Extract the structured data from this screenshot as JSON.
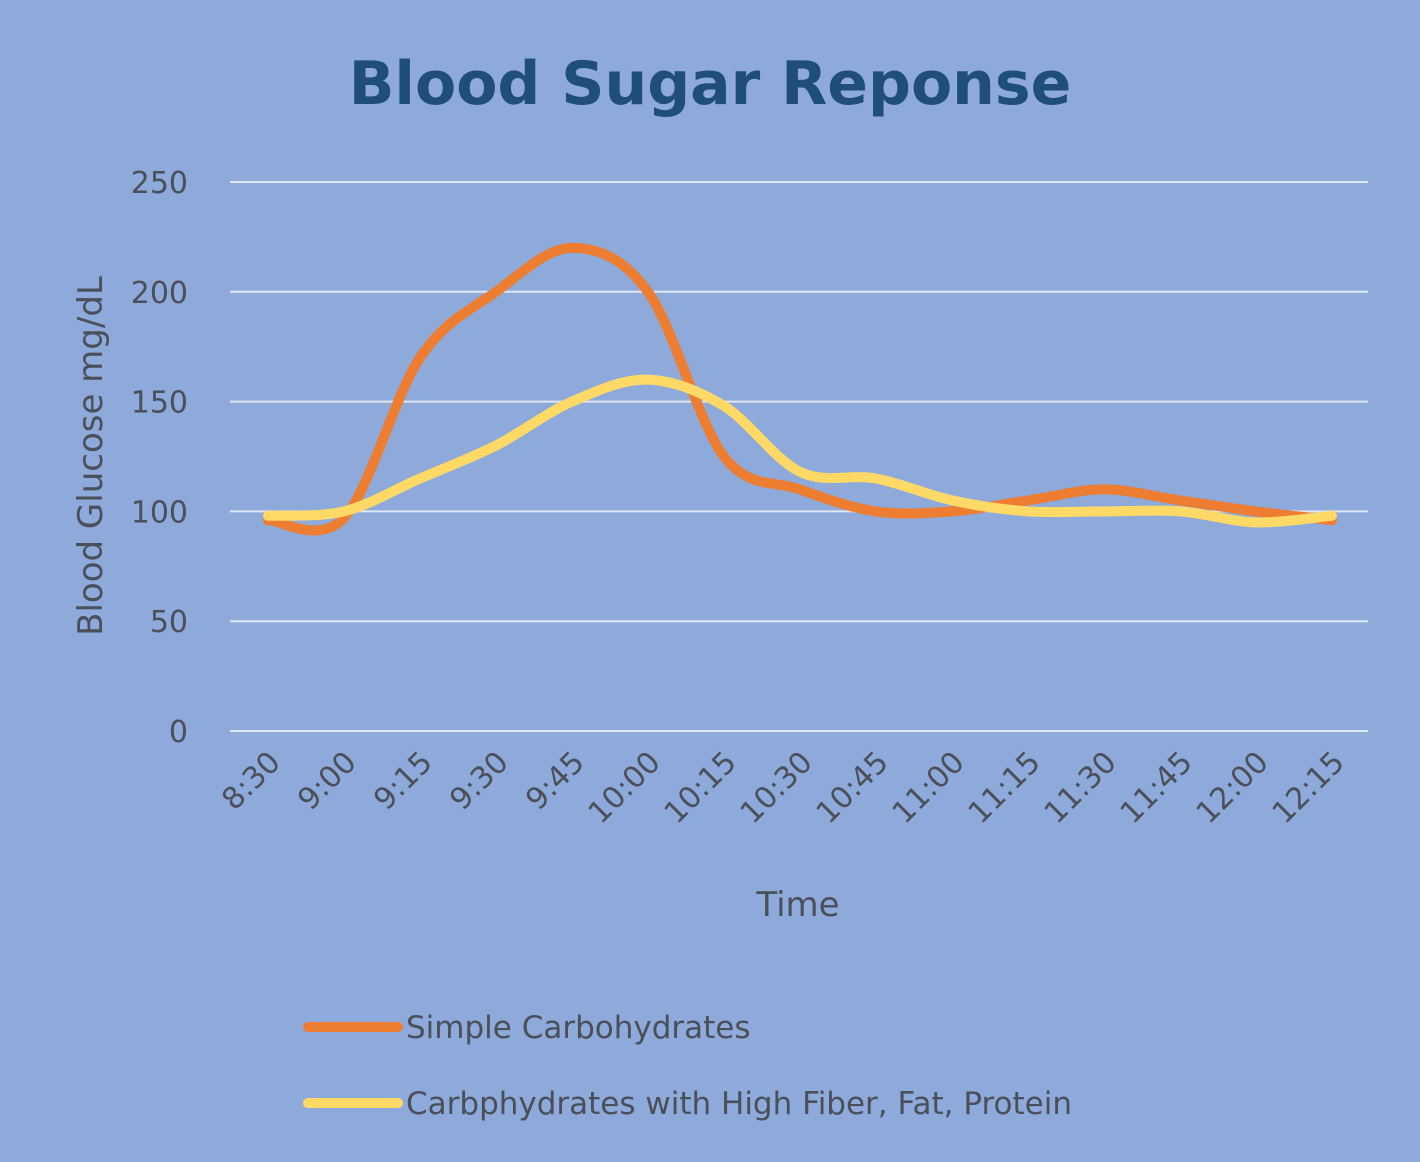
{
  "chart_data": {
    "type": "line",
    "title": "Blood Sugar Reponse",
    "xlabel": "Time",
    "ylabel": "Blood Glucose mg/dL",
    "ylim": [
      0,
      250
    ],
    "yticks": [
      0,
      50,
      100,
      150,
      200,
      250
    ],
    "grid": true,
    "smooth": true,
    "legend_position": "bottom",
    "categories": [
      "8:30",
      "9:00",
      "9:15",
      "9:30",
      "9:45",
      "10:00",
      "10:15",
      "10:30",
      "10:45",
      "11:00",
      "11:15",
      "11:30",
      "11:45",
      "12:00",
      "12:15"
    ],
    "series": [
      {
        "name": "Simple Carbohydrates",
        "color": "#ed7d31",
        "values": [
          96,
          97,
          170,
          200,
          220,
          200,
          125,
          110,
          100,
          100,
          105,
          110,
          105,
          100,
          96
        ]
      },
      {
        "name": "Carbphydrates with High Fiber, Fat, Protein",
        "color": "#ffd966",
        "values": [
          98,
          100,
          115,
          130,
          150,
          160,
          148,
          118,
          115,
          105,
          100,
          100,
          100,
          95,
          98
        ]
      }
    ]
  },
  "colors": {
    "background": "#8eaadb",
    "title": "#1f4e79",
    "text": "#4a4f5a",
    "grid": "#dfe6f4"
  }
}
